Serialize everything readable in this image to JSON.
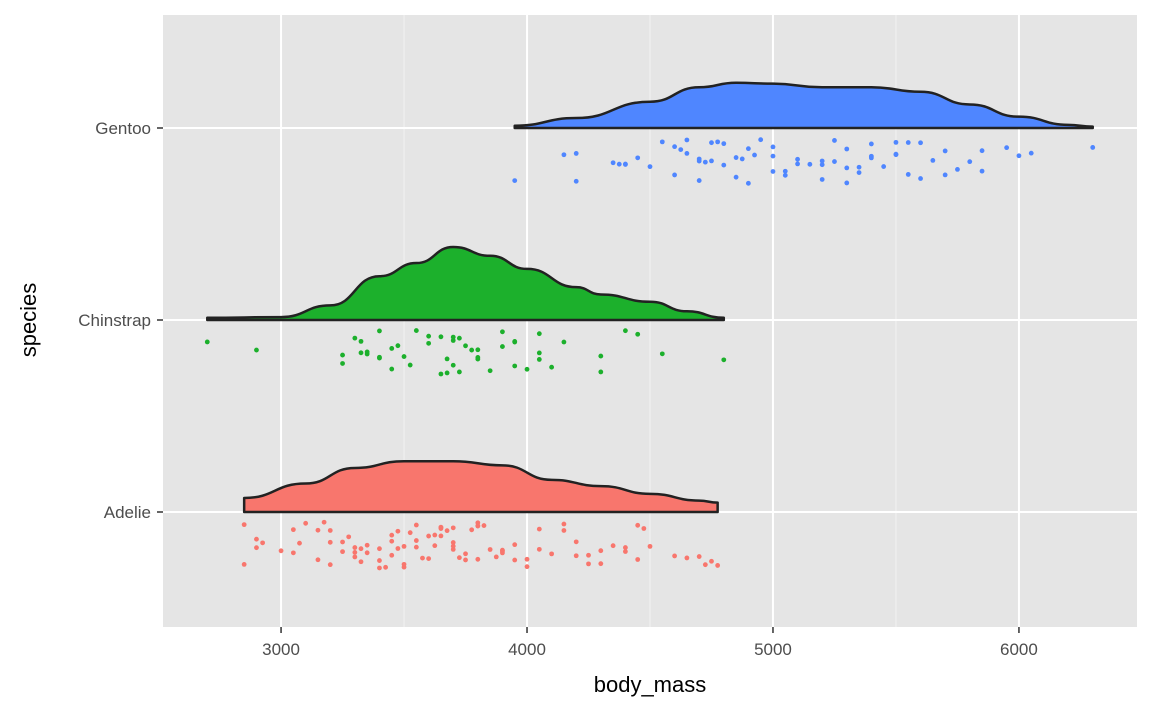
{
  "chart_data": {
    "type": "raincloud",
    "title": "",
    "xlabel": "body_mass",
    "ylabel": "species",
    "xlim": [
      2520,
      6480
    ],
    "x_ticks": [
      3000,
      4000,
      5000,
      6000
    ],
    "x_tick_labels": [
      "3000",
      "4000",
      "5000",
      "6000"
    ],
    "x_minor_ticks": [
      3500,
      4500,
      5500
    ],
    "grid": true,
    "legend": "none",
    "categories": [
      "Adelie",
      "Chinstrap",
      "Gentoo"
    ],
    "series": [
      {
        "name": "Adelie",
        "color": "#F8766D",
        "density_relative_max": 0.71,
        "density": [
          [
            2850,
            0
          ],
          [
            2850,
            0.27
          ],
          [
            3100,
            0.55
          ],
          [
            3300,
            0.85
          ],
          [
            3500,
            0.98
          ],
          [
            3700,
            0.98
          ],
          [
            3900,
            0.9
          ],
          [
            4100,
            0.62
          ],
          [
            4300,
            0.5
          ],
          [
            4500,
            0.35
          ],
          [
            4700,
            0.22
          ],
          [
            4775,
            0.18
          ],
          [
            4775,
            0
          ]
        ],
        "points": [
          2850,
          2850,
          2900,
          2900,
          2925,
          3000,
          3050,
          3050,
          3075,
          3100,
          3150,
          3150,
          3175,
          3200,
          3200,
          3200,
          3250,
          3250,
          3275,
          3300,
          3300,
          3300,
          3325,
          3325,
          3350,
          3350,
          3400,
          3400,
          3400,
          3425,
          3450,
          3450,
          3450,
          3475,
          3475,
          3500,
          3500,
          3500,
          3525,
          3550,
          3550,
          3550,
          3575,
          3600,
          3600,
          3625,
          3625,
          3650,
          3650,
          3650,
          3650,
          3675,
          3700,
          3700,
          3700,
          3700,
          3725,
          3750,
          3750,
          3775,
          3800,
          3800,
          3800,
          3800,
          3825,
          3850,
          3875,
          3900,
          3900,
          3900,
          3950,
          3950,
          4000,
          4000,
          4050,
          4050,
          4100,
          4150,
          4150,
          4200,
          4200,
          4250,
          4250,
          4300,
          4300,
          4350,
          4400,
          4400,
          4450,
          4450,
          4475,
          4500,
          4600,
          4650,
          4700,
          4725,
          4750,
          4775
        ]
      },
      {
        "name": "Chinstrap",
        "color": "#1CB02C",
        "density_relative_max": 1.0,
        "density": [
          [
            2700,
            0
          ],
          [
            2700,
            0.03
          ],
          [
            3000,
            0.04
          ],
          [
            3200,
            0.2
          ],
          [
            3400,
            0.6
          ],
          [
            3550,
            0.78
          ],
          [
            3700,
            1.0
          ],
          [
            3850,
            0.88
          ],
          [
            4000,
            0.7
          ],
          [
            4200,
            0.45
          ],
          [
            4300,
            0.35
          ],
          [
            4500,
            0.25
          ],
          [
            4650,
            0.12
          ],
          [
            4800,
            0.03
          ],
          [
            4800,
            0
          ]
        ],
        "points": [
          2700,
          2900,
          3250,
          3250,
          3300,
          3325,
          3325,
          3350,
          3350,
          3400,
          3400,
          3400,
          3450,
          3450,
          3475,
          3500,
          3525,
          3550,
          3600,
          3600,
          3650,
          3650,
          3675,
          3675,
          3700,
          3700,
          3700,
          3725,
          3725,
          3750,
          3775,
          3800,
          3800,
          3800,
          3850,
          3900,
          3900,
          3950,
          3950,
          3950,
          4000,
          4050,
          4050,
          4050,
          4100,
          4150,
          4300,
          4300,
          4400,
          4450,
          4550,
          4800
        ]
      },
      {
        "name": "Gentoo",
        "color": "#4F86FF",
        "density_relative_max": 0.62,
        "density": [
          [
            3950,
            0
          ],
          [
            3950,
            0.05
          ],
          [
            4200,
            0.22
          ],
          [
            4500,
            0.58
          ],
          [
            4700,
            0.9
          ],
          [
            4850,
            1.0
          ],
          [
            5000,
            0.98
          ],
          [
            5200,
            0.9
          ],
          [
            5400,
            0.9
          ],
          [
            5600,
            0.8
          ],
          [
            5800,
            0.52
          ],
          [
            6000,
            0.25
          ],
          [
            6200,
            0.07
          ],
          [
            6300,
            0.03
          ],
          [
            6300,
            0
          ]
        ],
        "points": [
          3950,
          4150,
          4200,
          4200,
          4350,
          4375,
          4400,
          4400,
          4450,
          4500,
          4550,
          4600,
          4600,
          4625,
          4650,
          4650,
          4700,
          4700,
          4700,
          4725,
          4750,
          4750,
          4775,
          4800,
          4800,
          4850,
          4850,
          4875,
          4900,
          4900,
          4925,
          4950,
          5000,
          5000,
          5000,
          5050,
          5050,
          5100,
          5100,
          5150,
          5200,
          5200,
          5200,
          5250,
          5250,
          5300,
          5300,
          5300,
          5350,
          5350,
          5400,
          5400,
          5400,
          5450,
          5500,
          5500,
          5500,
          5550,
          5550,
          5600,
          5600,
          5650,
          5700,
          5700,
          5750,
          5800,
          5850,
          5850,
          5950,
          6000,
          6050,
          6300
        ]
      }
    ]
  }
}
